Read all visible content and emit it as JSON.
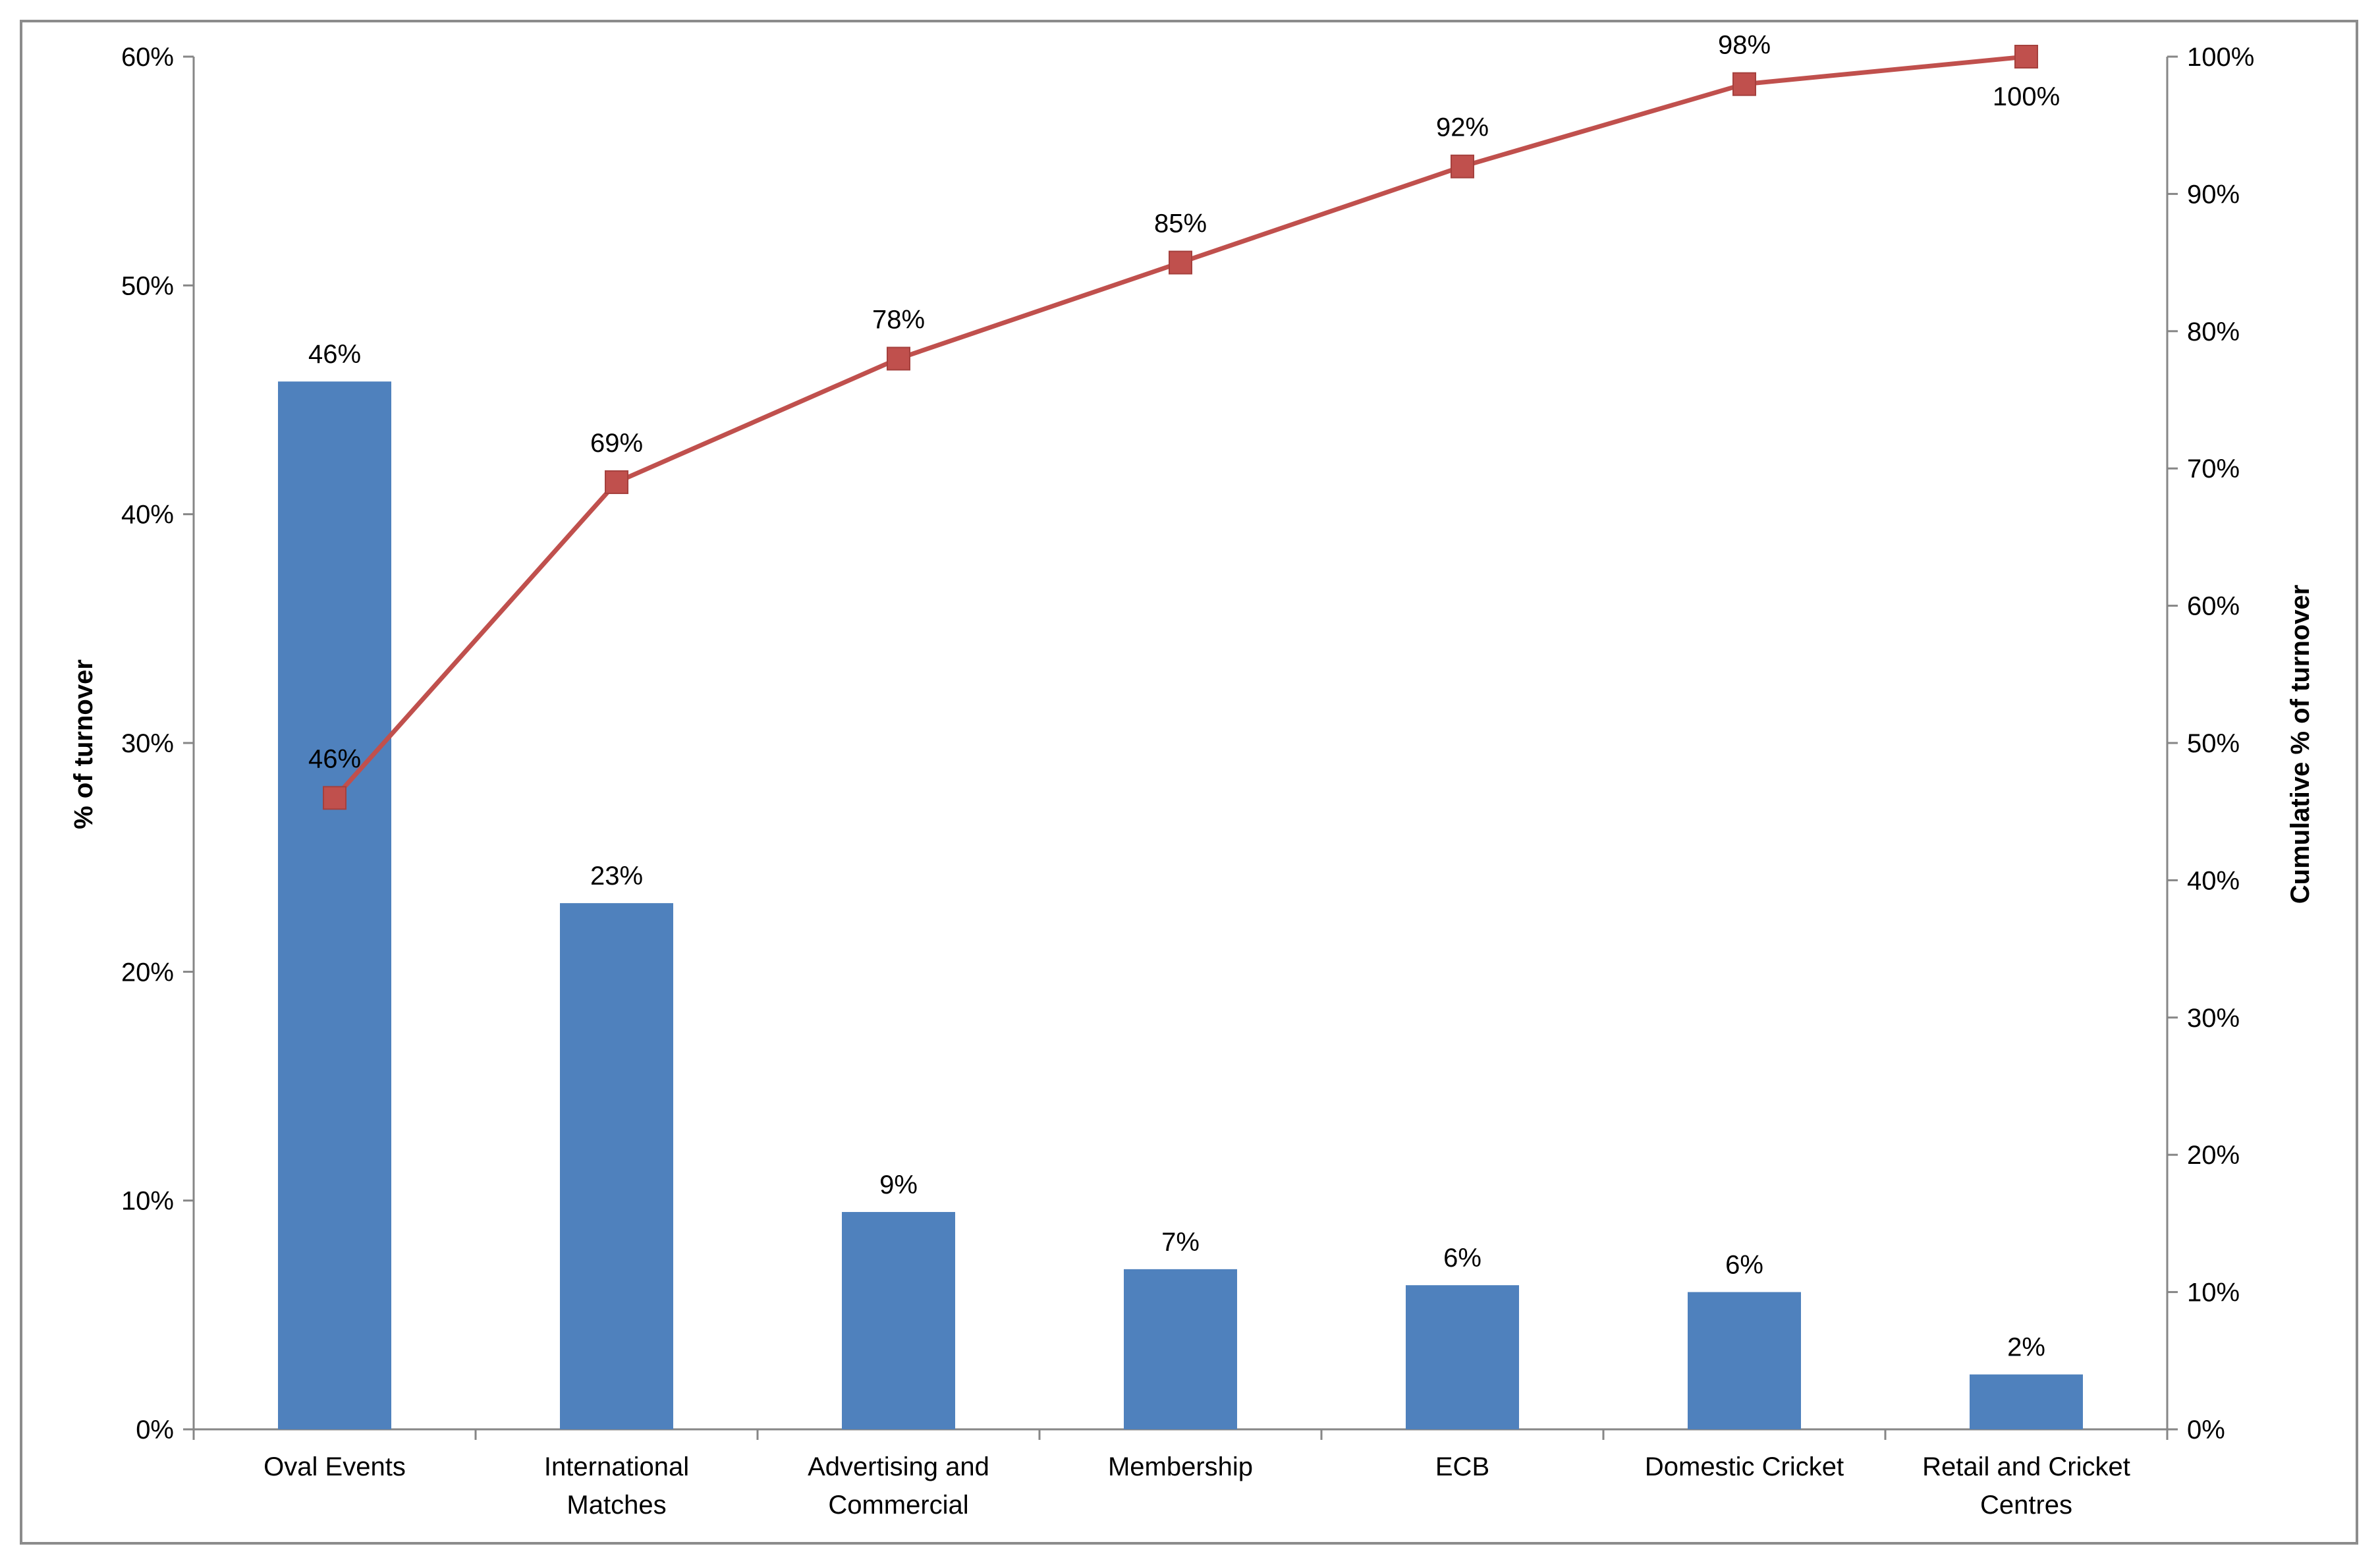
{
  "chart_data": {
    "type": "bar",
    "categories": [
      [
        "Oval Events"
      ],
      [
        "International",
        "Matches"
      ],
      [
        "Advertising and",
        "Commercial"
      ],
      [
        "Membership"
      ],
      [
        "ECB"
      ],
      [
        "Domestic Cricket"
      ],
      [
        "Retail and Cricket",
        "Centres"
      ]
    ],
    "series": [
      {
        "type": "bar",
        "axis": "left",
        "color": "#4f81bd",
        "values": [
          45.8,
          23.0,
          9.5,
          7.0,
          6.3,
          6.0,
          2.4
        ],
        "labels": [
          "46%",
          "23%",
          "9%",
          "7%",
          "6%",
          "6%",
          "2%"
        ]
      },
      {
        "type": "line",
        "axis": "right",
        "color": "#c0504d",
        "marker": "square",
        "values": [
          46,
          69,
          78,
          85,
          92,
          98,
          100
        ],
        "labels": [
          "46%",
          "69%",
          "78%",
          "85%",
          "92%",
          "98%",
          "100%"
        ]
      }
    ],
    "ylabel": "% of turnover",
    "y2label": "Cumulative % of turnover",
    "ylim": [
      0,
      60
    ],
    "y2lim": [
      0,
      100
    ],
    "yticks": [
      "0%",
      "10%",
      "20%",
      "30%",
      "40%",
      "50%",
      "60%"
    ],
    "y2ticks": [
      "0%",
      "10%",
      "20%",
      "30%",
      "40%",
      "50%",
      "60%",
      "70%",
      "80%",
      "90%",
      "100%"
    ],
    "grid": false,
    "legend": "none"
  }
}
